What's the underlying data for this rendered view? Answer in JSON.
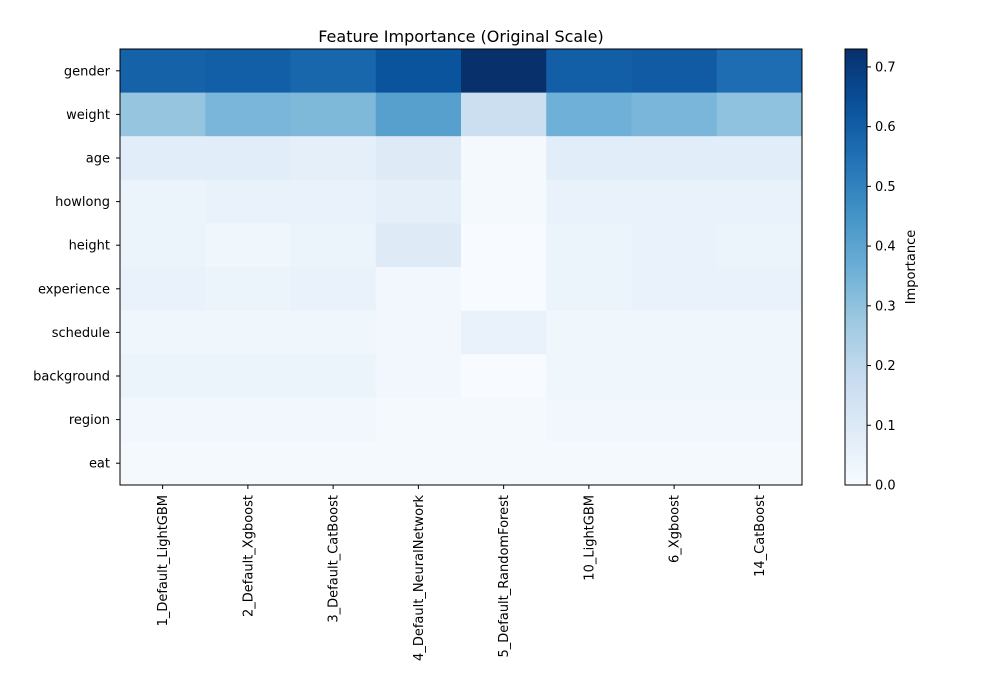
{
  "chart_data": {
    "type": "heatmap",
    "title": "Feature Importance (Original Scale)",
    "x_categories": [
      "1_Default_LightGBM",
      "2_Default_Xgboost",
      "3_Default_CatBoost",
      "4_Default_NeuralNetwork",
      "5_Default_RandomForest",
      "10_LightGBM",
      "6_Xgboost",
      "14_CatBoost"
    ],
    "y_categories": [
      "gender",
      "weight",
      "age",
      "howlong",
      "height",
      "experience",
      "schedule",
      "background",
      "region",
      "eat"
    ],
    "values": [
      [
        0.59,
        0.6,
        0.58,
        0.63,
        0.73,
        0.6,
        0.61,
        0.56
      ],
      [
        0.29,
        0.34,
        0.33,
        0.41,
        0.16,
        0.36,
        0.34,
        0.3
      ],
      [
        0.08,
        0.08,
        0.07,
        0.09,
        0.01,
        0.08,
        0.08,
        0.08
      ],
      [
        0.04,
        0.05,
        0.05,
        0.07,
        0.01,
        0.05,
        0.05,
        0.05
      ],
      [
        0.04,
        0.03,
        0.04,
        0.09,
        0.0,
        0.04,
        0.05,
        0.04
      ],
      [
        0.05,
        0.04,
        0.05,
        0.02,
        0.0,
        0.04,
        0.05,
        0.05
      ],
      [
        0.03,
        0.03,
        0.03,
        0.02,
        0.05,
        0.03,
        0.03,
        0.03
      ],
      [
        0.04,
        0.04,
        0.04,
        0.02,
        0.0,
        0.03,
        0.03,
        0.03
      ],
      [
        0.02,
        0.02,
        0.02,
        0.01,
        0.01,
        0.02,
        0.02,
        0.02
      ],
      [
        0.01,
        0.01,
        0.01,
        0.01,
        0.01,
        0.01,
        0.01,
        0.01
      ]
    ],
    "colormap": "Blues",
    "colorbar": {
      "label": "Importance",
      "range": [
        0.0,
        0.73
      ],
      "ticks": [
        0.0,
        0.1,
        0.2,
        0.3,
        0.4,
        0.5,
        0.6,
        0.7
      ],
      "tick_labels": [
        "0.0",
        "0.1",
        "0.2",
        "0.3",
        "0.4",
        "0.5",
        "0.6",
        "0.7"
      ]
    }
  }
}
